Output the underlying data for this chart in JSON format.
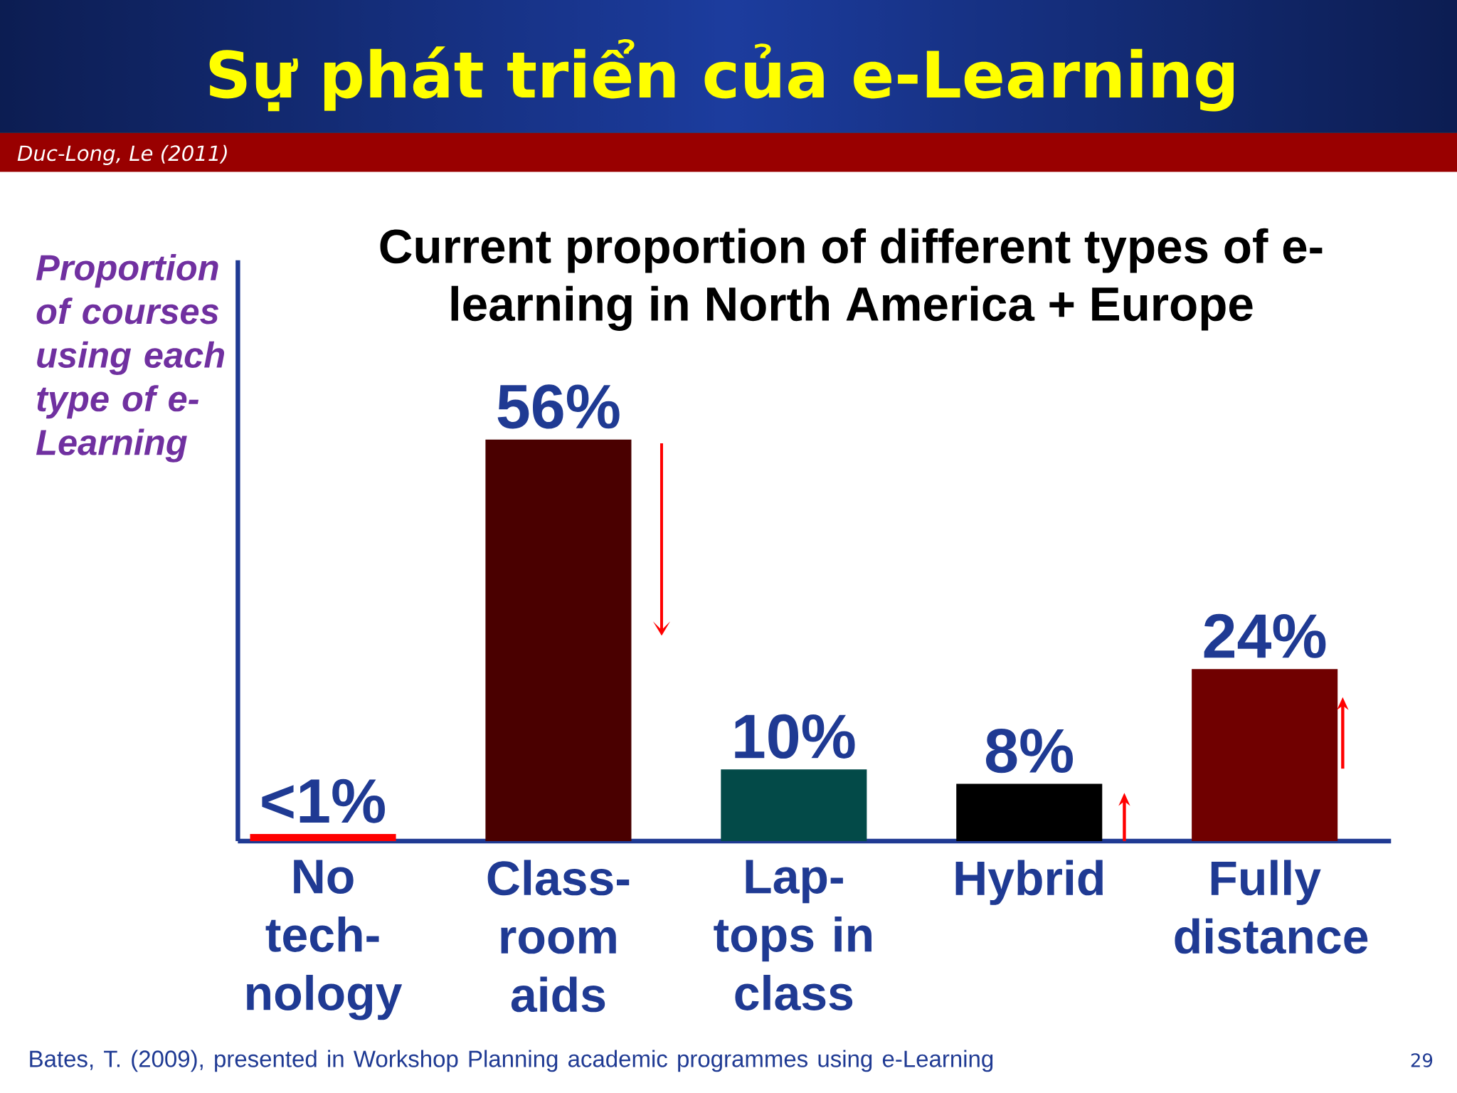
{
  "chart_data": {
    "type": "bar",
    "title": "Sự phát triển của e-Learning",
    "subtitle": "Current proportion of different types of e- learning in North America + Europe",
    "ylabel": "Proportion of courses using each type of e- Learning",
    "categories": [
      "No tech- nology",
      "Class- room aids",
      "Lap- tops in class",
      "Hybrid",
      "Fully distance"
    ],
    "values": [
      1,
      56,
      10,
      8,
      24
    ],
    "colors": [
      "#ff0000",
      "#4a0000",
      "#034a48",
      "#000000",
      "#700000"
    ],
    "value_labels": [
      "<1%",
      "56%",
      "10%",
      "8%",
      "24%"
    ],
    "ylim": [
      0,
      81
    ],
    "tick_labels": "x",
    "annotations": [
      "Duc-Long, Le (2011)",
      "Bates, T. (2009), presented in Workshop Planning academic programmes using e-Learning",
      "29"
    ]
  }
}
